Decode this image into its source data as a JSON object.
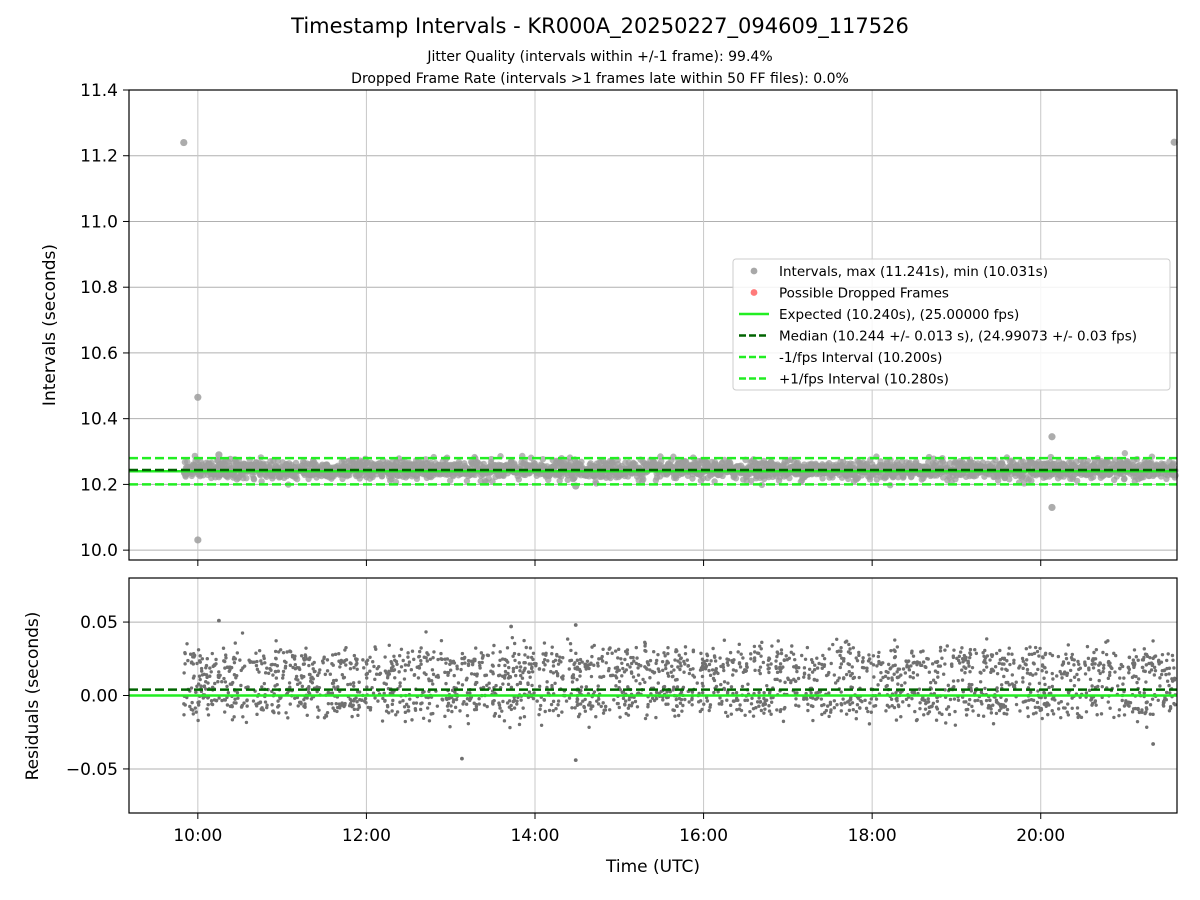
{
  "figure": {
    "title": "Timestamp Intervals - KR000A_20250227_094609_117526",
    "subtitle_lines": [
      "Jitter Quality (intervals within +/-1 frame): 99.4%",
      "Dropped Frame Rate (intervals >1 frames late within 50 FF files): 0.0%"
    ]
  },
  "chart_data": [
    {
      "type": "scatter",
      "panel": "top",
      "ylabel": "Intervals (seconds)",
      "xlabel": "",
      "xlim": [
        "09:11",
        "21:37"
      ],
      "ylim": [
        9.97,
        11.4
      ],
      "yticks": [
        "10.0",
        "10.2",
        "10.4",
        "10.6",
        "10.8",
        "11.0",
        "11.2",
        "11.4"
      ],
      "xticks": [
        "10:00",
        "12:00",
        "14:00",
        "16:00",
        "18:00",
        "20:00"
      ],
      "grid": true,
      "legend_position": "center-right",
      "legend": [
        {
          "label": "Intervals, max (11.241s), min (10.031s)",
          "marker": "dot",
          "color": "#9e9e9e"
        },
        {
          "label": "Possible Dropped Frames",
          "marker": "dot",
          "color": "#ff6b6b"
        },
        {
          "label": "Expected (10.240s), (25.00000 fps)",
          "marker": "solid",
          "color": "#22ee22"
        },
        {
          "label": "Median (10.244 +/- 0.013 s), (24.99073 +/- 0.03 fps)",
          "marker": "dashed",
          "color": "#006400"
        },
        {
          "label": "-1/fps Interval (10.200s)",
          "marker": "dashed",
          "color": "#22ee22"
        },
        {
          "label": "+1/fps Interval (10.280s)",
          "marker": "dashed",
          "color": "#22ee22"
        }
      ],
      "series": [
        {
          "name": "Intervals, max (11.241s), min (10.031s)",
          "color": "#9e9e9e",
          "time_range": [
            "09:50",
            "21:36"
          ],
          "band": [
            10.225,
            10.265
          ],
          "outliers": [
            {
              "time": "09:50",
              "value": 11.24
            },
            {
              "time": "21:35",
              "value": 11.241
            },
            {
              "time": "10:00",
              "value": 10.465
            },
            {
              "time": "10:00",
              "value": 10.031
            },
            {
              "time": "20:08",
              "value": 10.345
            },
            {
              "time": "20:08",
              "value": 10.13
            },
            {
              "time": "14:29",
              "value": 10.195
            },
            {
              "time": "10:15",
              "value": 10.29
            }
          ]
        },
        {
          "name": "Expected (10.240s), (25.00000 fps)",
          "value": 10.24,
          "color": "#22ee22",
          "style": "solid"
        },
        {
          "name": "Median (10.244 +/- 0.013 s), (24.99073 +/- 0.03 fps)",
          "value": 10.244,
          "color": "#006400",
          "style": "dashed"
        },
        {
          "name": "-1/fps Interval (10.200s)",
          "value": 10.2,
          "color": "#22ee22",
          "style": "dashed"
        },
        {
          "name": "+1/fps Interval (10.280s)",
          "value": 10.28,
          "color": "#22ee22",
          "style": "dashed"
        }
      ]
    },
    {
      "type": "scatter",
      "panel": "bottom",
      "ylabel": "Residuals (seconds)",
      "xlabel": "Time (UTC)",
      "xlim": [
        "09:11",
        "21:37"
      ],
      "ylim": [
        -0.08,
        0.08
      ],
      "yticks": [
        "−0.05",
        "0.00",
        "0.05"
      ],
      "ytick_values": [
        -0.05,
        0.0,
        0.05
      ],
      "xticks": [
        "10:00",
        "12:00",
        "14:00",
        "16:00",
        "18:00",
        "20:00"
      ],
      "grid": true,
      "series": [
        {
          "color": "#707070",
          "time_range": [
            "09:50",
            "21:36"
          ],
          "upper_cluster": [
            0.012,
            0.03
          ],
          "lower_cluster": [
            -0.012,
            0.006
          ],
          "outliers": [
            {
              "time": "10:15",
              "value": 0.051
            },
            {
              "time": "13:08",
              "value": -0.043
            },
            {
              "time": "14:29",
              "value": -0.044
            },
            {
              "time": "14:29",
              "value": 0.048
            },
            {
              "time": "13:43",
              "value": 0.047
            },
            {
              "time": "21:20",
              "value": -0.033
            }
          ]
        },
        {
          "value": 0.0,
          "color": "#22ee22",
          "style": "solid"
        },
        {
          "value": 0.004,
          "color": "#006400",
          "style": "dashed"
        }
      ]
    }
  ]
}
